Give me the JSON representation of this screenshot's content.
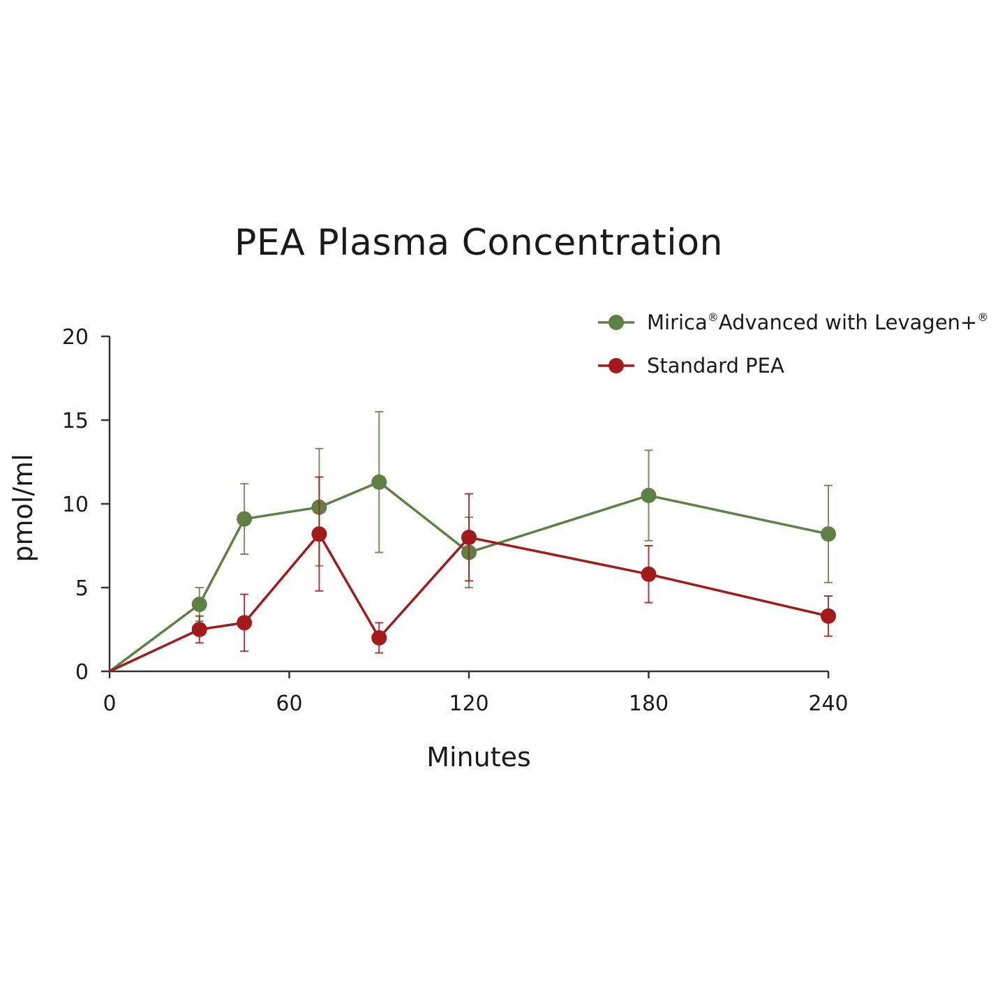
{
  "chart_data": {
    "type": "line",
    "title": "PEA Plasma Concentration",
    "xlabel": "Minutes",
    "ylabel": "pmol/ml",
    "xlim": [
      0,
      240
    ],
    "ylim": [
      0,
      20
    ],
    "xticks": [
      0,
      60,
      120,
      180,
      240
    ],
    "yticks": [
      0,
      5,
      10,
      15,
      20
    ],
    "grid": false,
    "legend_position": "top-right",
    "series": [
      {
        "name": "Mirica®Advanced with Levagen+®",
        "legend_main": "Mirica",
        "legend_mid": "Advanced with Levagen+",
        "color": "#5f8045",
        "x": [
          0,
          30,
          45,
          70,
          90,
          120,
          180,
          240
        ],
        "y": [
          0,
          4.0,
          9.1,
          9.8,
          11.3,
          7.1,
          10.5,
          8.2
        ],
        "err": [
          0,
          1.0,
          2.1,
          3.5,
          4.2,
          2.1,
          2.7,
          2.9
        ]
      },
      {
        "name": "Standard PEA",
        "legend_main": "Standard PEA",
        "color": "#a31a1a",
        "x": [
          0,
          30,
          45,
          70,
          90,
          120,
          180,
          240
        ],
        "y": [
          0,
          2.5,
          2.9,
          8.2,
          2.0,
          8.0,
          5.8,
          3.3
        ],
        "err": [
          0,
          0.8,
          1.7,
          3.4,
          0.9,
          2.6,
          1.7,
          1.2
        ]
      }
    ]
  }
}
